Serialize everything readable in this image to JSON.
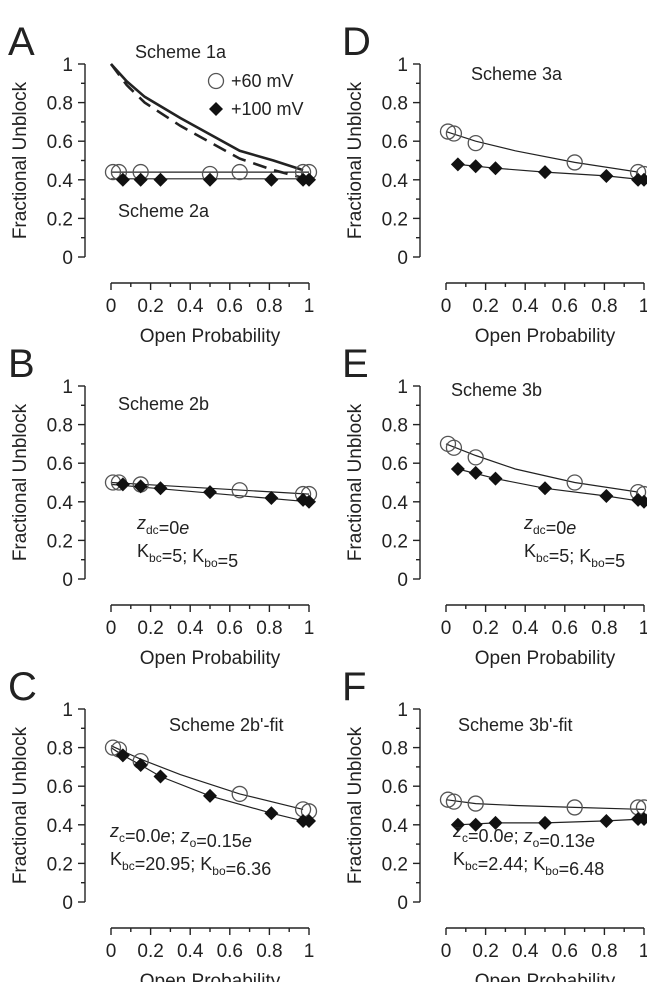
{
  "figure": {
    "panels": [
      {
        "id": "A",
        "label": "A",
        "annotations": [
          "Scheme 1a",
          "Scheme 2a"
        ],
        "param_lines": [],
        "legend": [
          {
            "symbol": "circle",
            "text": "+60 mV"
          },
          {
            "symbol": "diamond",
            "text": "+100 mV"
          }
        ]
      },
      {
        "id": "B",
        "label": "B",
        "annotations": [
          "Scheme 2b"
        ],
        "param_lines": [
          "z_dc=0e",
          "K_bc=5; K_bo=5"
        ],
        "legend": []
      },
      {
        "id": "C",
        "label": "C",
        "annotations": [
          "Scheme 2b'-fit"
        ],
        "param_lines": [
          "z_c=0.0e; z_o=0.15e",
          "K_bc=20.95; K_bo=6.36"
        ],
        "legend": []
      },
      {
        "id": "D",
        "label": "D",
        "annotations": [
          "Scheme 3a"
        ],
        "param_lines": [],
        "legend": []
      },
      {
        "id": "E",
        "label": "E",
        "annotations": [
          "Scheme 3b"
        ],
        "param_lines": [
          "z_dc=0e",
          "K_bc=5; K_bo=5"
        ],
        "legend": []
      },
      {
        "id": "F",
        "label": "F",
        "annotations": [
          "Scheme 3b'-fit"
        ],
        "param_lines": [
          "z_c=0.0e; z_o=0.13e",
          "K_bc=2.44; K_bo=6.48"
        ],
        "legend": []
      }
    ]
  },
  "chart_data": [
    {
      "panel": "A",
      "type": "scatter",
      "xlabel": "Open Probability",
      "ylabel": "Fractional Unblock",
      "xlim": [
        0,
        1
      ],
      "ylim": [
        0,
        1
      ],
      "xticks": [
        "0",
        "0.2",
        "0.4",
        "0.6",
        "0.8",
        "1"
      ],
      "yticks": [
        "0",
        "0.2",
        "0.4",
        "0.6",
        "0.8",
        "1"
      ],
      "series": [
        {
          "name": "+60 mV",
          "marker": "circle",
          "x": [
            0.01,
            0.04,
            0.15,
            0.5,
            0.65,
            0.97,
            1.0
          ],
          "y": [
            0.44,
            0.44,
            0.44,
            0.43,
            0.44,
            0.44,
            0.44
          ]
        },
        {
          "name": "+100 mV",
          "marker": "diamond",
          "x": [
            0.06,
            0.15,
            0.25,
            0.5,
            0.81,
            0.97,
            1.0
          ],
          "y": [
            0.4,
            0.4,
            0.4,
            0.4,
            0.4,
            0.4,
            0.4
          ]
        }
      ],
      "fits": [
        {
          "style": "thin",
          "x": [
            0,
            1
          ],
          "y": [
            0.44,
            0.44
          ]
        },
        {
          "style": "thin",
          "x": [
            0,
            1
          ],
          "y": [
            0.405,
            0.405
          ]
        },
        {
          "style": "thick",
          "x": [
            0,
            0.08,
            0.17,
            0.35,
            0.65,
            0.82,
            0.97
          ],
          "y": [
            1.0,
            0.91,
            0.83,
            0.72,
            0.55,
            0.5,
            0.45
          ]
        },
        {
          "style": "thick-dashed",
          "x": [
            0,
            0.08,
            0.17,
            0.35,
            0.65,
            0.82,
            0.97
          ],
          "y": [
            1.0,
            0.89,
            0.8,
            0.68,
            0.51,
            0.45,
            0.41
          ]
        }
      ]
    },
    {
      "panel": "B",
      "type": "scatter",
      "xlabel": "Open Probability",
      "ylabel": "Fractional Unblock",
      "xlim": [
        0,
        1
      ],
      "ylim": [
        0,
        1
      ],
      "xticks": [
        "0",
        "0.2",
        "0.4",
        "0.6",
        "0.8",
        "1"
      ],
      "yticks": [
        "0",
        "0.2",
        "0.4",
        "0.6",
        "0.8",
        "1"
      ],
      "series": [
        {
          "name": "+60 mV",
          "marker": "circle",
          "x": [
            0.01,
            0.04,
            0.15,
            0.65,
            0.97,
            1.0
          ],
          "y": [
            0.5,
            0.5,
            0.49,
            0.46,
            0.44,
            0.44
          ]
        },
        {
          "name": "+100 mV",
          "marker": "diamond",
          "x": [
            0.06,
            0.15,
            0.25,
            0.5,
            0.81,
            0.97,
            1.0
          ],
          "y": [
            0.49,
            0.48,
            0.47,
            0.45,
            0.42,
            0.41,
            0.4
          ]
        }
      ],
      "fits": [
        {
          "style": "thin",
          "x": [
            0,
            1
          ],
          "y": [
            0.5,
            0.44
          ]
        },
        {
          "style": "thin",
          "x": [
            0,
            1
          ],
          "y": [
            0.49,
            0.4
          ]
        }
      ]
    },
    {
      "panel": "C",
      "type": "scatter",
      "xlabel": "Open Probability",
      "ylabel": "Fractional Unblock",
      "xlim": [
        0,
        1
      ],
      "ylim": [
        0,
        1
      ],
      "xticks": [
        "0",
        "0.2",
        "0.4",
        "0.6",
        "0.8",
        "1"
      ],
      "yticks": [
        "0",
        "0.2",
        "0.4",
        "0.6",
        "0.8",
        "1"
      ],
      "series": [
        {
          "name": "+60 mV",
          "marker": "circle",
          "x": [
            0.01,
            0.04,
            0.15,
            0.65,
            0.97,
            1.0
          ],
          "y": [
            0.8,
            0.79,
            0.73,
            0.56,
            0.48,
            0.47
          ]
        },
        {
          "name": "+100 mV",
          "marker": "diamond",
          "x": [
            0.06,
            0.15,
            0.25,
            0.5,
            0.81,
            0.97,
            1.0
          ],
          "y": [
            0.76,
            0.71,
            0.65,
            0.55,
            0.46,
            0.42,
            0.42
          ]
        }
      ],
      "fits": [
        {
          "style": "thin",
          "x": [
            0,
            0.15,
            0.35,
            0.65,
            0.97
          ],
          "y": [
            0.81,
            0.74,
            0.66,
            0.56,
            0.48
          ]
        },
        {
          "style": "thin",
          "x": [
            0,
            0.06,
            0.15,
            0.25,
            0.5,
            0.81,
            0.97
          ],
          "y": [
            0.8,
            0.76,
            0.71,
            0.65,
            0.55,
            0.46,
            0.42
          ]
        }
      ]
    },
    {
      "panel": "D",
      "type": "scatter",
      "xlabel": "Open Probability",
      "ylabel": "Fractional Unblock",
      "xlim": [
        0,
        1
      ],
      "ylim": [
        0,
        1
      ],
      "xticks": [
        "0",
        "0.2",
        "0.4",
        "0.6",
        "0.8",
        "1"
      ],
      "yticks": [
        "0",
        "0.2",
        "0.4",
        "0.6",
        "0.8",
        "1"
      ],
      "series": [
        {
          "name": "+60 mV",
          "marker": "circle",
          "x": [
            0.01,
            0.04,
            0.15,
            0.65,
            0.97,
            1.0
          ],
          "y": [
            0.65,
            0.64,
            0.59,
            0.49,
            0.44,
            0.43
          ]
        },
        {
          "name": "+100 mV",
          "marker": "diamond",
          "x": [
            0.06,
            0.15,
            0.25,
            0.5,
            0.81,
            0.97,
            1.0
          ],
          "y": [
            0.48,
            0.47,
            0.46,
            0.44,
            0.42,
            0.4,
            0.4
          ]
        }
      ],
      "fits": [
        {
          "style": "thin",
          "x": [
            0,
            0.15,
            0.35,
            0.65,
            0.97
          ],
          "y": [
            0.65,
            0.6,
            0.55,
            0.49,
            0.44
          ]
        },
        {
          "style": "thin",
          "x": [
            0.06,
            0.25,
            0.5,
            0.81,
            1.0
          ],
          "y": [
            0.48,
            0.46,
            0.44,
            0.42,
            0.4
          ]
        }
      ]
    },
    {
      "panel": "E",
      "type": "scatter",
      "xlabel": "Open Probability",
      "ylabel": "Fractional Unblock",
      "xlim": [
        0,
        1
      ],
      "ylim": [
        0,
        1
      ],
      "xticks": [
        "0",
        "0.2",
        "0.4",
        "0.6",
        "0.8",
        "1"
      ],
      "yticks": [
        "0",
        "0.2",
        "0.4",
        "0.6",
        "0.8",
        "1"
      ],
      "series": [
        {
          "name": "+60 mV",
          "marker": "circle",
          "x": [
            0.01,
            0.04,
            0.15,
            0.65,
            0.97,
            1.0
          ],
          "y": [
            0.7,
            0.68,
            0.63,
            0.5,
            0.45,
            0.44
          ]
        },
        {
          "name": "+100 mV",
          "marker": "diamond",
          "x": [
            0.06,
            0.15,
            0.25,
            0.5,
            0.81,
            0.97,
            1.0
          ],
          "y": [
            0.57,
            0.55,
            0.52,
            0.47,
            0.43,
            0.41,
            0.4
          ]
        }
      ],
      "fits": [
        {
          "style": "thin",
          "x": [
            0,
            0.15,
            0.35,
            0.65,
            0.97
          ],
          "y": [
            0.7,
            0.64,
            0.57,
            0.5,
            0.45
          ]
        },
        {
          "style": "thin",
          "x": [
            0.06,
            0.25,
            0.5,
            0.81,
            1.0
          ],
          "y": [
            0.57,
            0.52,
            0.47,
            0.43,
            0.4
          ]
        }
      ]
    },
    {
      "panel": "F",
      "type": "scatter",
      "xlabel": "Open Probability",
      "ylabel": "Fractional Unblock",
      "xlim": [
        0,
        1
      ],
      "ylim": [
        0,
        1
      ],
      "xticks": [
        "0",
        "0.2",
        "0.4",
        "0.6",
        "0.8",
        "1"
      ],
      "yticks": [
        "0",
        "0.2",
        "0.4",
        "0.6",
        "0.8",
        "1"
      ],
      "series": [
        {
          "name": "+60 mV",
          "marker": "circle",
          "x": [
            0.01,
            0.04,
            0.15,
            0.65,
            0.97,
            1.0
          ],
          "y": [
            0.53,
            0.52,
            0.51,
            0.49,
            0.49,
            0.49
          ]
        },
        {
          "name": "+100 mV",
          "marker": "diamond",
          "x": [
            0.06,
            0.15,
            0.25,
            0.5,
            0.81,
            0.97,
            1.0
          ],
          "y": [
            0.4,
            0.4,
            0.41,
            0.41,
            0.42,
            0.43,
            0.43
          ]
        }
      ],
      "fits": [
        {
          "style": "thin",
          "x": [
            0,
            0.15,
            0.35,
            0.65,
            1.0
          ],
          "y": [
            0.53,
            0.51,
            0.5,
            0.49,
            0.48
          ]
        },
        {
          "style": "thin",
          "x": [
            0.06,
            0.25,
            0.5,
            0.81,
            1.0
          ],
          "y": [
            0.4,
            0.41,
            0.41,
            0.42,
            0.43
          ]
        }
      ]
    }
  ]
}
